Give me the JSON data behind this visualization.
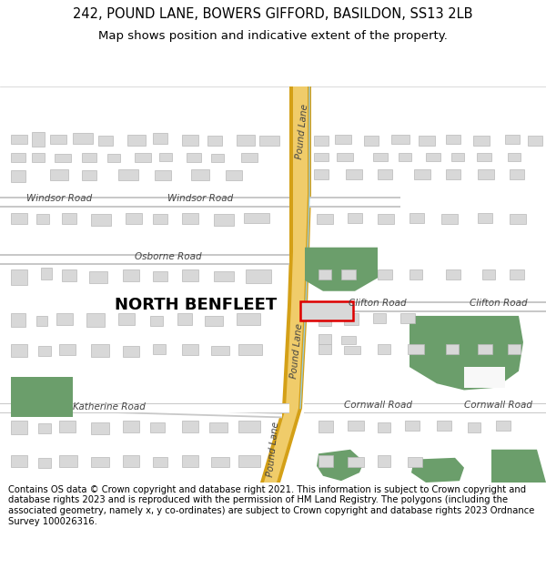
{
  "title_line1": "242, POUND LANE, BOWERS GIFFORD, BASILDON, SS13 2LB",
  "title_line2": "Map shows position and indicative extent of the property.",
  "footer_text": "Contains OS data © Crown copyright and database right 2021. This information is subject to Crown copyright and database rights 2023 and is reproduced with the permission of HM Land Registry. The polygons (including the associated geometry, namely x, y co-ordinates) are subject to Crown copyright and database rights 2023 Ordnance Survey 100026316.",
  "map_bg": "#f8f8f8",
  "road_yellow": "#f0cc6a",
  "road_yellow_border": "#d4a017",
  "building_color": "#d8d8d8",
  "building_edge": "#b8b8b8",
  "green_color": "#6b9e6b",
  "red_color": "#dd0000",
  "blue_line": "#99ccdd",
  "title_fontsize": 10.5,
  "subtitle_fontsize": 9.5,
  "footer_fontsize": 7.2,
  "label_fs": 7.5,
  "nb_fs": 13
}
